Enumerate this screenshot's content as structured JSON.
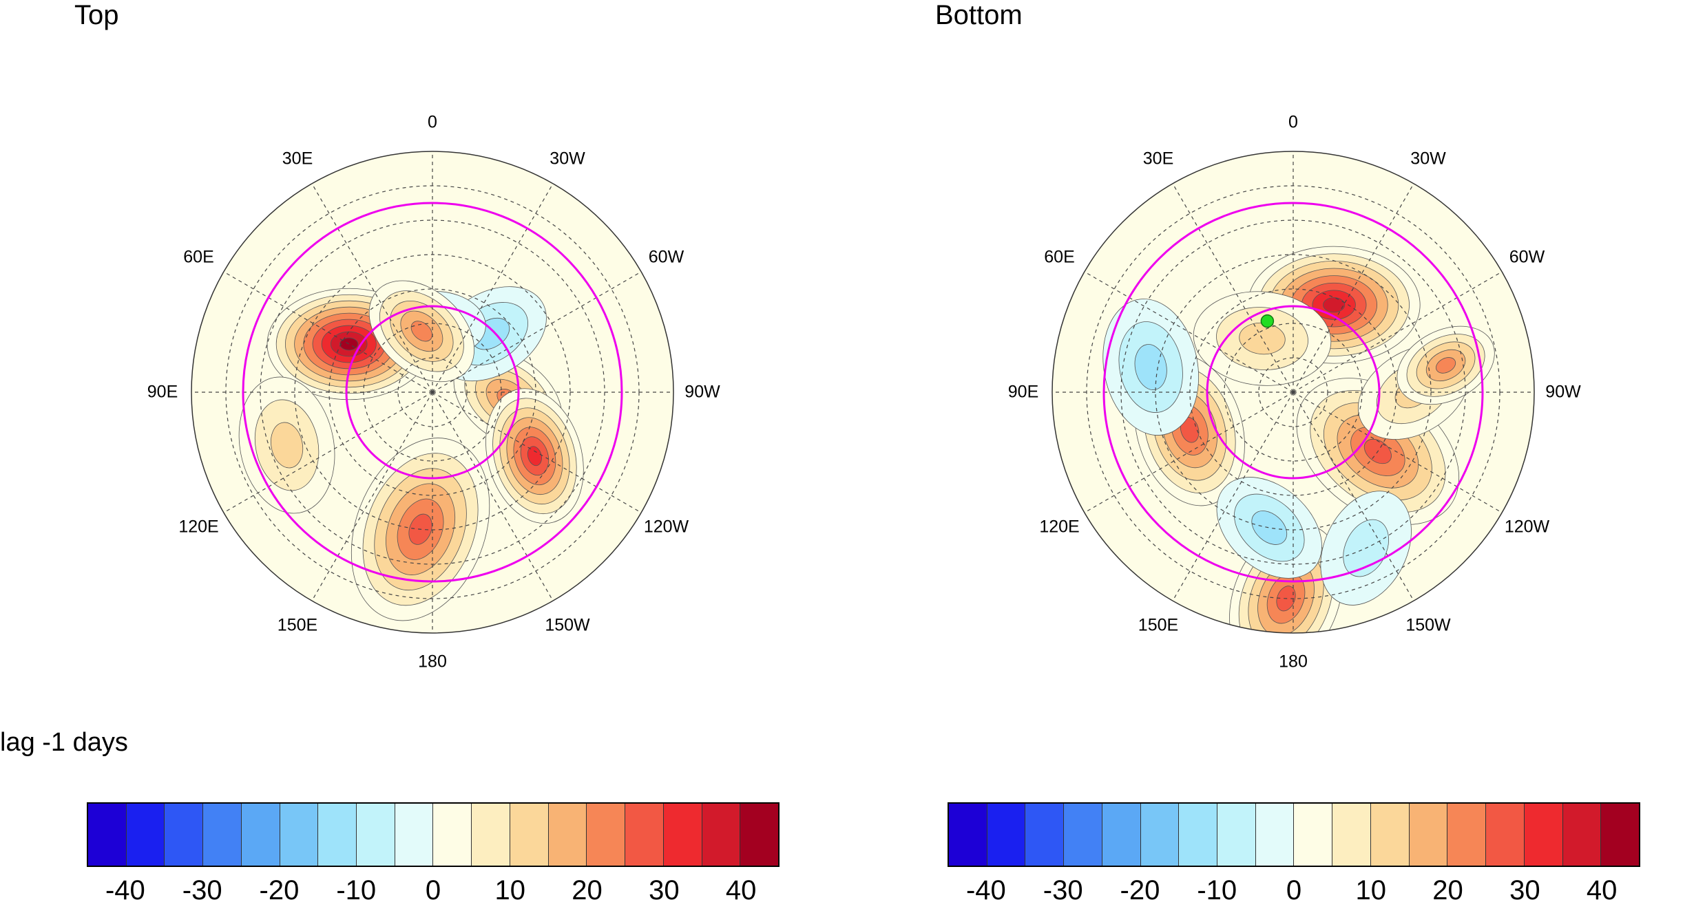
{
  "panels": [
    {
      "title": "Top",
      "lon_labels": [
        "0",
        "30W",
        "60W",
        "90W",
        "120W",
        "150W",
        "180",
        "150E",
        "120E",
        "90E",
        "60E",
        "30E"
      ],
      "marker": null
    },
    {
      "title": "Bottom",
      "lon_labels": [
        "0",
        "30W",
        "60W",
        "90W",
        "120W",
        "150W",
        "180",
        "150E",
        "120E",
        "90E",
        "60E",
        "30E"
      ],
      "marker": {
        "color": "#22dd22",
        "lat": 68,
        "lon": 20
      }
    }
  ],
  "caption": "lag -1 days",
  "colorbar": {
    "colors": [
      "#1d00d6",
      "#1a20f0",
      "#2e57f5",
      "#4281f5",
      "#5ba8f5",
      "#78c6f7",
      "#9ee3fa",
      "#c2f3fa",
      "#e3fbfa",
      "#fefde6",
      "#fdeec0",
      "#fbd79a",
      "#f8b374",
      "#f68656",
      "#f25844",
      "#ee2a2f",
      "#d21a2b",
      "#a30020"
    ],
    "ticks": [
      "-40",
      "-30",
      "-20",
      "-10",
      "0",
      "10",
      "20",
      "30",
      "40"
    ]
  },
  "ring_color": "#ee00ee"
}
